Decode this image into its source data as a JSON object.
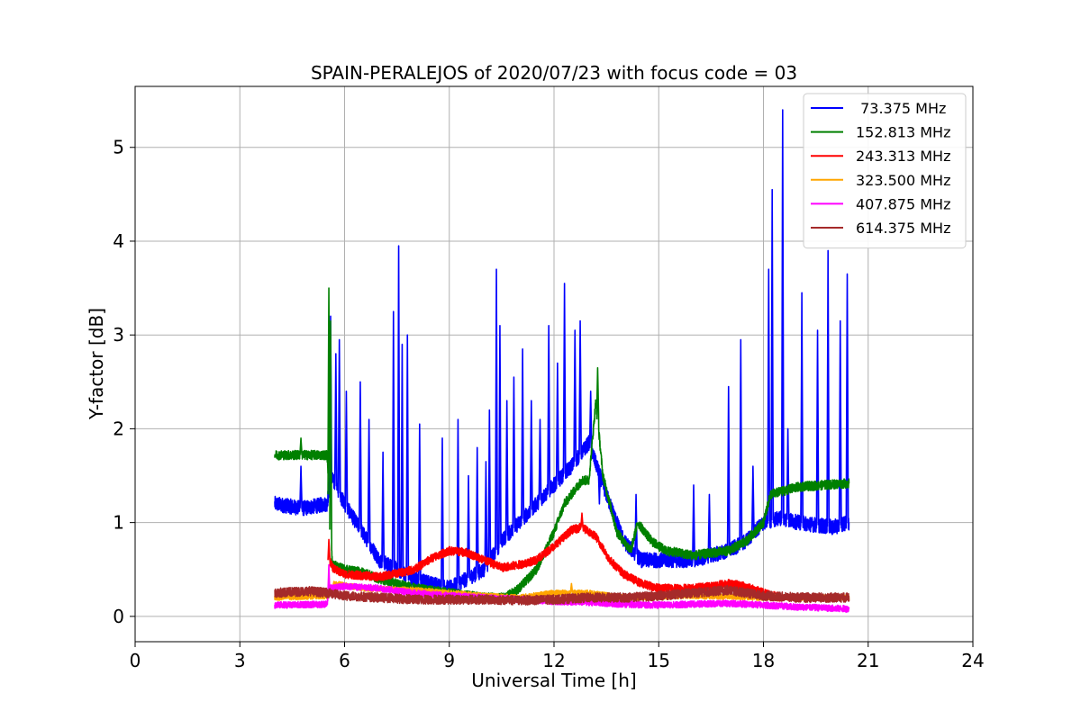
{
  "chart_data": {
    "type": "line",
    "title": "SPAIN-PERALEJOS of 2020/07/23 with focus code = 03",
    "xlabel": "Universal Time [h]",
    "ylabel": "Y-factor [dB]",
    "xlim": [
      0,
      24
    ],
    "ylim": [
      -0.27,
      5.65
    ],
    "xticks": [
      0,
      3,
      6,
      9,
      12,
      15,
      18,
      21,
      24
    ],
    "yticks": [
      0,
      1,
      2,
      3,
      4,
      5
    ],
    "grid": true,
    "legend_position": "top-right",
    "series": [
      {
        "name": " 73.375 MHz",
        "color": "#0000ff",
        "noise": 0.08,
        "points": [
          [
            4.0,
            1.2
          ],
          [
            4.8,
            1.15
          ],
          [
            5.5,
            1.2
          ],
          [
            5.6,
            1.5
          ],
          [
            6.0,
            1.2
          ],
          [
            6.5,
            0.9
          ],
          [
            7.0,
            0.6
          ],
          [
            8.0,
            0.4
          ],
          [
            9.0,
            0.3
          ],
          [
            10.0,
            0.5
          ],
          [
            10.5,
            0.8
          ],
          [
            11.0,
            1.0
          ],
          [
            11.5,
            1.2
          ],
          [
            12.0,
            1.4
          ],
          [
            12.5,
            1.6
          ],
          [
            13.0,
            1.85
          ],
          [
            13.5,
            1.3
          ],
          [
            14.0,
            0.8
          ],
          [
            14.5,
            0.6
          ],
          [
            15.0,
            0.6
          ],
          [
            16.0,
            0.6
          ],
          [
            17.0,
            0.7
          ],
          [
            17.5,
            0.8
          ],
          [
            18.0,
            1.0
          ],
          [
            18.5,
            1.05
          ],
          [
            19.0,
            1.0
          ],
          [
            20.0,
            0.95
          ],
          [
            20.45,
            1.0
          ]
        ],
        "spikes": [
          [
            4.75,
            1.6
          ],
          [
            5.6,
            3.2
          ],
          [
            5.75,
            2.8
          ],
          [
            5.85,
            2.95
          ],
          [
            6.05,
            2.4
          ],
          [
            6.45,
            2.5
          ],
          [
            6.7,
            2.1
          ],
          [
            7.1,
            1.75
          ],
          [
            7.4,
            3.25
          ],
          [
            7.55,
            3.95
          ],
          [
            7.65,
            2.9
          ],
          [
            7.8,
            3.0
          ],
          [
            8.15,
            2.05
          ],
          [
            8.8,
            1.9
          ],
          [
            9.25,
            2.1
          ],
          [
            9.55,
            1.5
          ],
          [
            9.8,
            1.8
          ],
          [
            10.05,
            1.65
          ],
          [
            10.15,
            2.2
          ],
          [
            10.35,
            3.7
          ],
          [
            10.45,
            3.1
          ],
          [
            10.65,
            2.3
          ],
          [
            10.85,
            2.55
          ],
          [
            11.1,
            2.85
          ],
          [
            11.35,
            2.3
          ],
          [
            11.6,
            2.1
          ],
          [
            11.85,
            3.1
          ],
          [
            12.1,
            2.7
          ],
          [
            12.3,
            3.55
          ],
          [
            12.6,
            3.05
          ],
          [
            12.75,
            3.15
          ],
          [
            13.05,
            2.4
          ],
          [
            13.3,
            1.2
          ],
          [
            14.35,
            1.3
          ],
          [
            16.0,
            1.4
          ],
          [
            16.45,
            1.3
          ],
          [
            17.0,
            2.45
          ],
          [
            17.35,
            2.95
          ],
          [
            17.7,
            1.6
          ],
          [
            18.15,
            3.7
          ],
          [
            18.25,
            4.55
          ],
          [
            18.55,
            5.4
          ],
          [
            18.7,
            2.0
          ],
          [
            19.1,
            3.45
          ],
          [
            19.55,
            3.05
          ],
          [
            19.85,
            3.9
          ],
          [
            20.2,
            3.15
          ],
          [
            20.4,
            3.65
          ]
        ]
      },
      {
        "name": "152.813 MHz",
        "color": "#008000",
        "noise": 0.05,
        "points": [
          [
            4.0,
            1.72
          ],
          [
            5.5,
            1.72
          ],
          [
            5.55,
            1.3
          ],
          [
            5.65,
            0.55
          ],
          [
            6.0,
            0.5
          ],
          [
            6.5,
            0.47
          ],
          [
            7.0,
            0.4
          ],
          [
            8.0,
            0.3
          ],
          [
            9.0,
            0.25
          ],
          [
            10.0,
            0.2
          ],
          [
            10.6,
            0.2
          ],
          [
            11.0,
            0.3
          ],
          [
            11.5,
            0.5
          ],
          [
            12.0,
            0.9
          ],
          [
            12.3,
            1.2
          ],
          [
            12.8,
            1.45
          ],
          [
            13.0,
            1.45
          ],
          [
            13.2,
            2.3
          ],
          [
            13.4,
            1.5
          ],
          [
            13.8,
            0.9
          ],
          [
            14.2,
            0.7
          ],
          [
            14.4,
            1.0
          ],
          [
            14.8,
            0.8
          ],
          [
            15.2,
            0.7
          ],
          [
            16.0,
            0.65
          ],
          [
            17.0,
            0.7
          ],
          [
            17.5,
            0.8
          ],
          [
            18.0,
            1.0
          ],
          [
            18.2,
            1.3
          ],
          [
            19.0,
            1.38
          ],
          [
            20.45,
            1.42
          ]
        ],
        "spikes": [
          [
            5.55,
            3.5
          ],
          [
            5.6,
            3.15
          ],
          [
            4.75,
            1.9
          ],
          [
            13.25,
            2.65
          ]
        ]
      },
      {
        "name": "243.313 MHz",
        "color": "#ff0000",
        "noise": 0.045,
        "points": [
          [
            5.55,
            0.6
          ],
          [
            5.7,
            0.5
          ],
          [
            6.0,
            0.45
          ],
          [
            7.0,
            0.42
          ],
          [
            8.0,
            0.5
          ],
          [
            8.5,
            0.62
          ],
          [
            9.0,
            0.7
          ],
          [
            9.5,
            0.68
          ],
          [
            10.0,
            0.6
          ],
          [
            10.5,
            0.52
          ],
          [
            11.0,
            0.55
          ],
          [
            11.5,
            0.6
          ],
          [
            12.0,
            0.75
          ],
          [
            12.5,
            0.92
          ],
          [
            12.8,
            0.95
          ],
          [
            13.2,
            0.85
          ],
          [
            13.6,
            0.6
          ],
          [
            14.0,
            0.45
          ],
          [
            14.5,
            0.35
          ],
          [
            15.0,
            0.3
          ],
          [
            16.0,
            0.3
          ],
          [
            17.0,
            0.35
          ],
          [
            17.5,
            0.32
          ],
          [
            18.0,
            0.25
          ],
          [
            18.5,
            0.2
          ]
        ],
        "spikes": [
          [
            5.55,
            0.82
          ],
          [
            12.8,
            1.1
          ]
        ]
      },
      {
        "name": "323.500 MHz",
        "color": "#ffa500",
        "noise": 0.03,
        "points": [
          [
            4.0,
            0.2
          ],
          [
            5.55,
            0.22
          ],
          [
            5.7,
            0.35
          ],
          [
            6.5,
            0.3
          ],
          [
            8.0,
            0.28
          ],
          [
            9.0,
            0.25
          ],
          [
            10.0,
            0.22
          ],
          [
            11.0,
            0.2
          ],
          [
            12.0,
            0.25
          ],
          [
            13.0,
            0.25
          ],
          [
            14.0,
            0.2
          ],
          [
            16.0,
            0.22
          ],
          [
            18.0,
            0.2
          ],
          [
            20.45,
            0.2
          ]
        ],
        "spikes": [
          [
            12.5,
            0.35
          ]
        ]
      },
      {
        "name": "407.875 MHz",
        "color": "#ff00ff",
        "noise": 0.035,
        "points": [
          [
            4.0,
            0.12
          ],
          [
            5.5,
            0.13
          ],
          [
            5.6,
            0.3
          ],
          [
            6.0,
            0.32
          ],
          [
            7.0,
            0.3
          ],
          [
            8.0,
            0.25
          ],
          [
            9.0,
            0.22
          ],
          [
            10.0,
            0.2
          ],
          [
            11.0,
            0.18
          ],
          [
            12.0,
            0.16
          ],
          [
            13.0,
            0.15
          ],
          [
            14.0,
            0.13
          ],
          [
            15.0,
            0.12
          ],
          [
            16.0,
            0.13
          ],
          [
            17.0,
            0.14
          ],
          [
            18.0,
            0.12
          ],
          [
            19.0,
            0.1
          ],
          [
            20.45,
            0.08
          ]
        ],
        "spikes": [
          [
            5.55,
            0.55
          ]
        ]
      },
      {
        "name": "614.375 MHz",
        "color": "#a52a2a",
        "noise": 0.05,
        "points": [
          [
            4.0,
            0.25
          ],
          [
            5.0,
            0.27
          ],
          [
            5.5,
            0.25
          ],
          [
            6.0,
            0.22
          ],
          [
            7.0,
            0.2
          ],
          [
            8.0,
            0.18
          ],
          [
            9.0,
            0.18
          ],
          [
            10.0,
            0.18
          ],
          [
            11.0,
            0.17
          ],
          [
            12.0,
            0.18
          ],
          [
            13.0,
            0.2
          ],
          [
            14.0,
            0.2
          ],
          [
            15.0,
            0.22
          ],
          [
            16.0,
            0.25
          ],
          [
            17.0,
            0.28
          ],
          [
            18.0,
            0.22
          ],
          [
            19.0,
            0.2
          ],
          [
            20.45,
            0.2
          ]
        ],
        "spikes": []
      }
    ]
  }
}
